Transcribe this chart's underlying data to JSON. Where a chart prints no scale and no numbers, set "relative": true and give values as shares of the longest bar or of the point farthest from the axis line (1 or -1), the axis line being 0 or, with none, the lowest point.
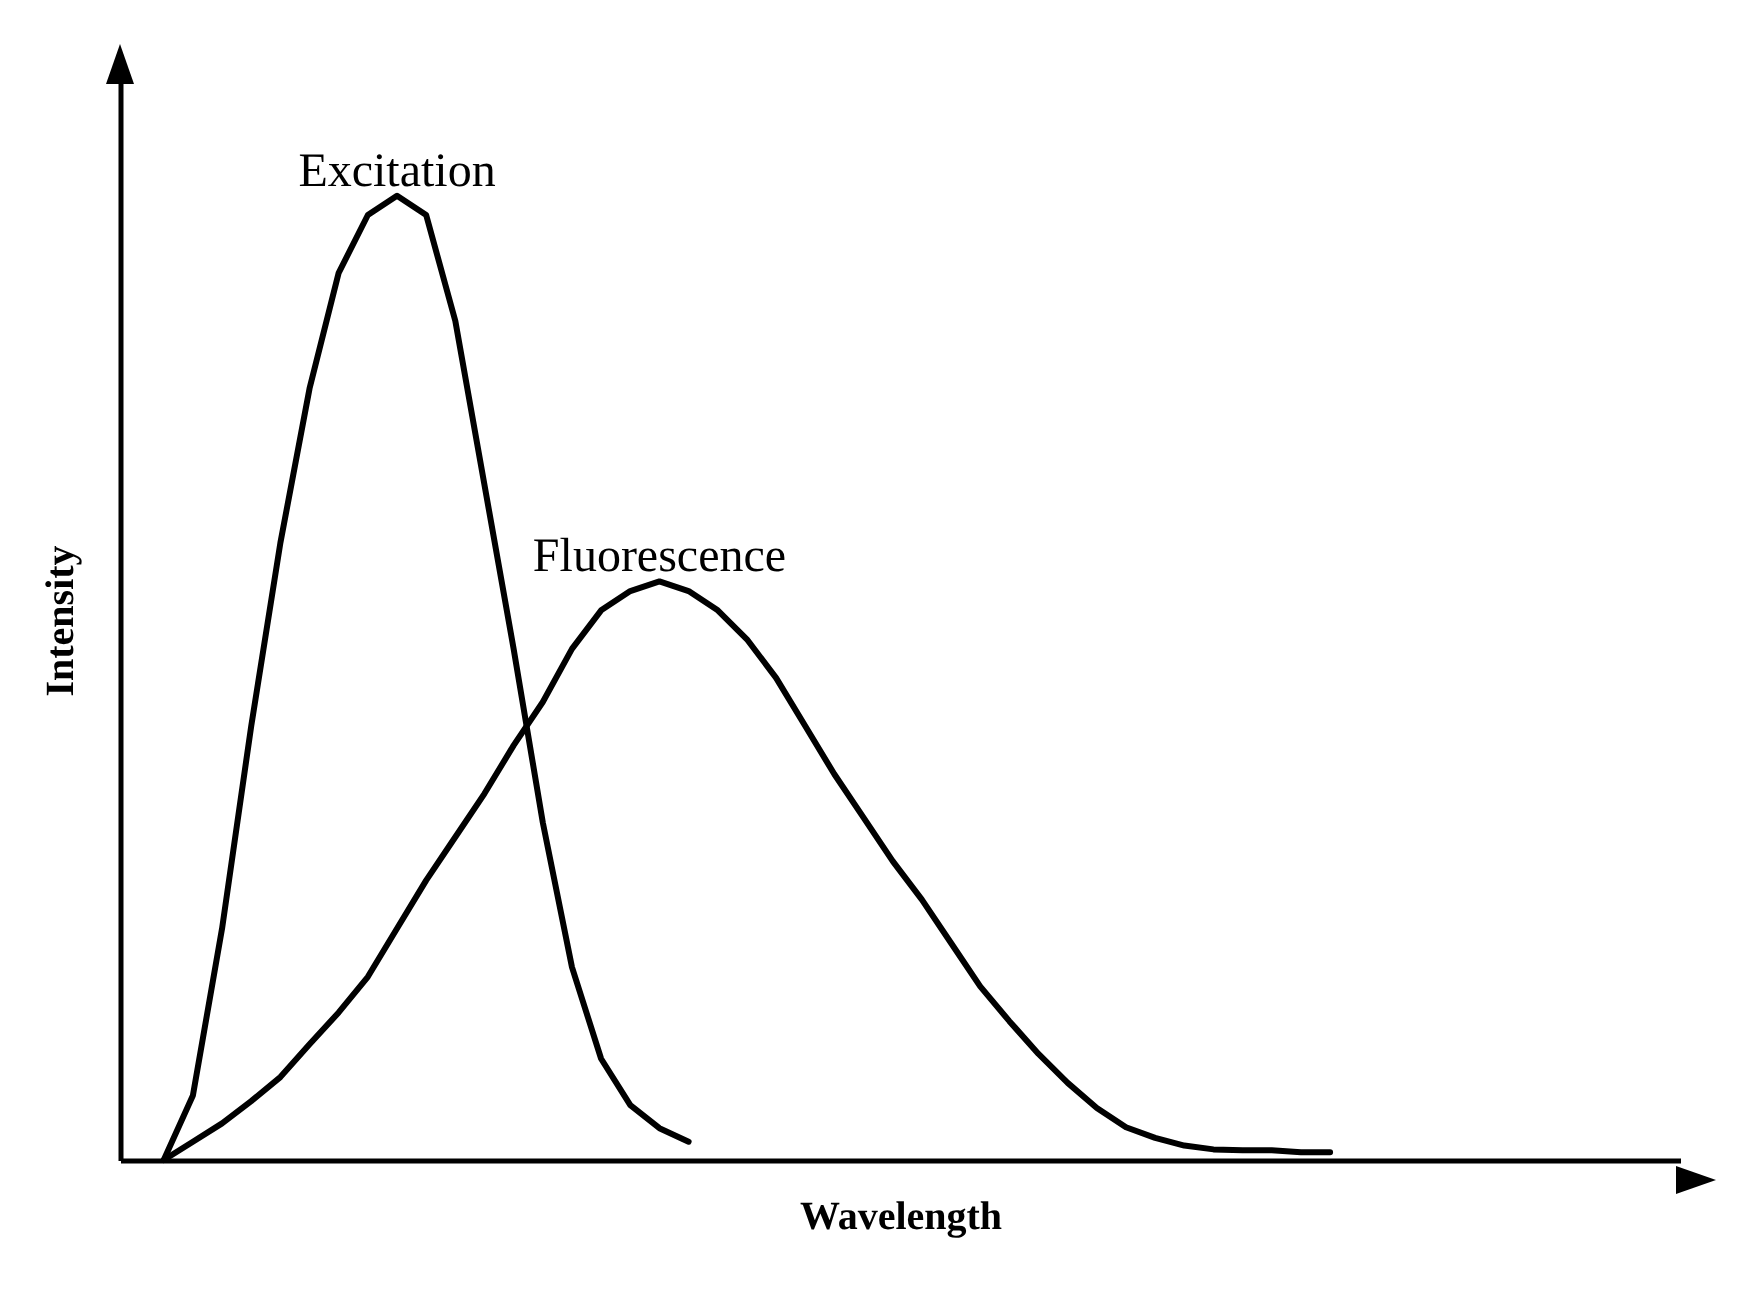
{
  "chart_data": {
    "type": "line",
    "relative": true,
    "xlabel": "Wavelength",
    "ylabel": "Intensity",
    "grid": false,
    "legend": false,
    "marker": "none",
    "line_style": "solid",
    "categories": [
      null,
      null,
      null,
      null,
      null,
      null,
      null,
      null,
      null,
      null,
      null,
      null,
      null,
      null,
      null,
      null,
      null,
      null,
      null,
      null,
      null,
      null,
      null,
      null,
      null,
      null,
      null,
      null,
      null,
      null,
      null,
      null,
      null,
      null,
      null,
      null,
      null,
      null,
      null,
      null,
      null
    ],
    "series": [
      {
        "name": "Excitation",
        "color": "#000000",
        "values": [
          0,
          0.067,
          0.24,
          0.45,
          0.64,
          0.8,
          0.92,
          0.98,
          1,
          0.98,
          0.87,
          0.7,
          0.53,
          0.35,
          0.2,
          0.105,
          0.057,
          0.033,
          0.019,
          null,
          null,
          null,
          null,
          null,
          null,
          null,
          null,
          null,
          null,
          null,
          null,
          null,
          null,
          null,
          null,
          null,
          null,
          null,
          null,
          null,
          null
        ]
      },
      {
        "name": "Fluorescence",
        "color": "#000000",
        "values": [
          0,
          0.019,
          0.038,
          0.061,
          0.086,
          0.12,
          0.153,
          0.19,
          0.24,
          0.29,
          0.335,
          0.38,
          0.43,
          0.475,
          0.53,
          0.57,
          0.59,
          0.6,
          0.59,
          0.57,
          0.54,
          0.5,
          0.45,
          0.4,
          0.355,
          0.31,
          0.27,
          0.225,
          0.18,
          0.144,
          0.11,
          0.08,
          0.054,
          0.034,
          0.023,
          0.015,
          0.011,
          0.01,
          0.01,
          0.008,
          0.008
        ]
      }
    ]
  }
}
